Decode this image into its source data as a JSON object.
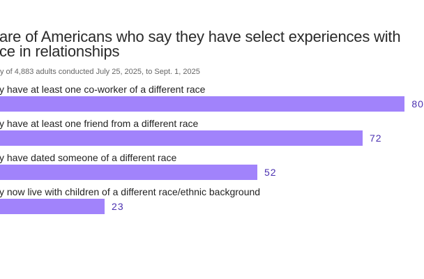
{
  "chart_data": {
    "type": "bar",
    "orientation": "horizontal",
    "title": [
      "are of Americans who say they have select experiences with",
      "ce in relationships"
    ],
    "subtitle": "y of 4,883 adults conducted July 25, 2025, to Sept. 1, 2025",
    "categories": [
      "y have at least one co-worker of a different race",
      "y have at least one friend from a different race",
      "y have dated someone of a different race",
      "y now live with children of a different race/ethnic background"
    ],
    "values": [
      80,
      72,
      52,
      23
    ],
    "value_labels": [
      "80",
      "72",
      "52",
      "23"
    ],
    "xlim": [
      0,
      100
    ],
    "grid": false,
    "colors": {
      "bar": "#a183fb",
      "value_label": "#4b30b0"
    }
  }
}
